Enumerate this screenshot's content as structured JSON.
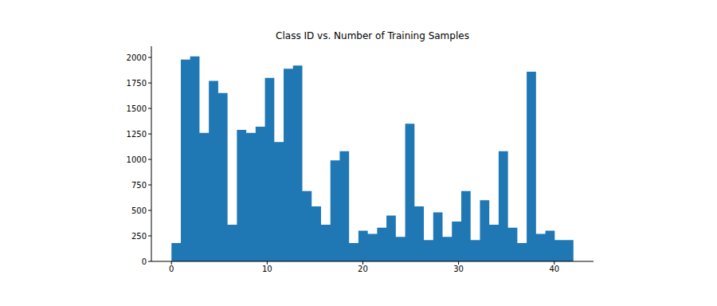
{
  "chart_data": {
    "type": "histogram",
    "title": "Class ID vs. Number of Training Samples",
    "bins": [
      0,
      0.977,
      1.953,
      2.93,
      3.907,
      4.884,
      5.86,
      6.837,
      7.814,
      8.791,
      9.767,
      10.744,
      11.721,
      12.698,
      13.674,
      14.651,
      15.628,
      16.605,
      17.581,
      18.558,
      19.535,
      20.512,
      21.488,
      22.465,
      23.442,
      24.419,
      25.395,
      26.372,
      27.349,
      28.326,
      29.302,
      30.279,
      31.256,
      32.233,
      33.209,
      34.186,
      35.163,
      36.14,
      37.116,
      38.093,
      39.07,
      40.047,
      41.023,
      42
    ],
    "counts": [
      180,
      1980,
      2010,
      1260,
      1770,
      1650,
      360,
      1290,
      1260,
      1320,
      1800,
      1170,
      1890,
      1920,
      690,
      540,
      360,
      990,
      1080,
      180,
      300,
      270,
      330,
      450,
      240,
      1350,
      540,
      210,
      480,
      240,
      390,
      690,
      210,
      600,
      360,
      1080,
      330,
      180,
      1860,
      270,
      300,
      210,
      210
    ],
    "color": "#1f77b4",
    "xlim": [
      -2.1,
      44.1
    ],
    "ylim": [
      0,
      2110
    ],
    "xticks": [
      0,
      10,
      20,
      30,
      40
    ],
    "yticks": [
      0,
      250,
      500,
      750,
      1000,
      1250,
      1500,
      1750,
      2000
    ]
  }
}
